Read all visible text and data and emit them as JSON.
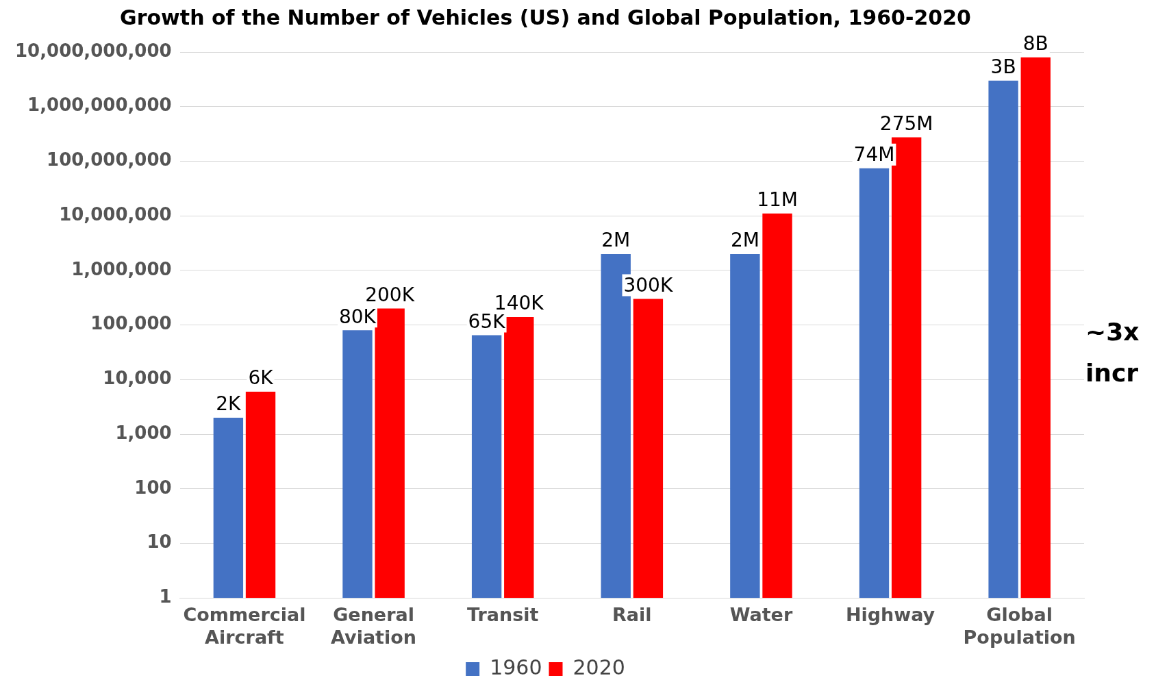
{
  "chart_data": {
    "type": "bar",
    "title": "Growth of the Number of Vehicles (US) and Global Population, 1960-2020",
    "categories": [
      "Commercial Aircraft",
      "General Aviation",
      "Transit",
      "Rail",
      "Water",
      "Highway",
      "Global Population"
    ],
    "series": [
      {
        "name": "1960",
        "color": "#4472c4",
        "values": [
          2000,
          80000,
          65000,
          2000000,
          2000000,
          74000000,
          3000000000
        ],
        "value_labels": [
          "2K",
          "80K",
          "65K",
          "2M",
          "2M",
          "74M",
          "3B"
        ]
      },
      {
        "name": "2020",
        "color": "#ff0000",
        "values": [
          6000,
          200000,
          140000,
          300000,
          11000000,
          275000000,
          8000000000
        ],
        "value_labels": [
          "6K",
          "200K",
          "140K",
          "300K",
          "11M",
          "275M",
          "8B"
        ]
      }
    ],
    "log": "y",
    "ylim": [
      1,
      10000000000
    ],
    "yticks": [
      1,
      10,
      100,
      {
        "value": 1000,
        "label": "1,000"
      },
      {
        "value": 10000,
        "label": "10,000"
      },
      {
        "value": 100000,
        "label": "100,000"
      },
      {
        "value": 1000000,
        "label": "1,000,000"
      },
      {
        "value": 10000000,
        "label": "10,000,000"
      },
      {
        "value": 100000000,
        "label": "100,000,000"
      },
      {
        "value": 1000000000,
        "label": "1,000,000,000"
      },
      {
        "value": 10000000000,
        "label": "10,000,000,000"
      }
    ],
    "grid": "y",
    "legend": "bottom",
    "annotations": [
      "~3x incr"
    ]
  }
}
